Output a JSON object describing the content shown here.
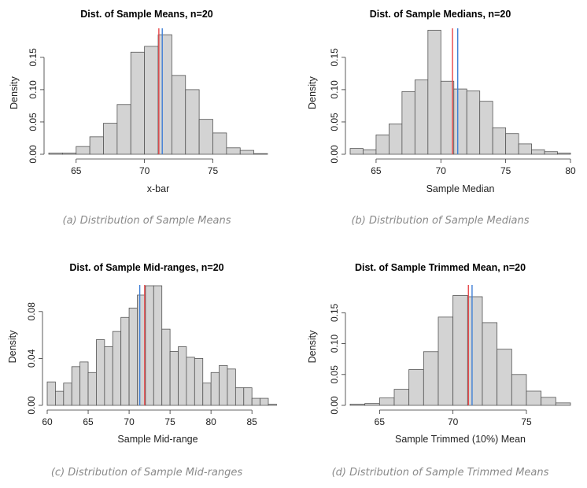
{
  "chart_data": [
    {
      "type": "histogram",
      "title": "Dist. of Sample Means, n=20",
      "xlabel": "x-bar",
      "ylabel": "Density",
      "caption": "(a) Distribution of Sample Means",
      "xlim": [
        63,
        79
      ],
      "ylim": [
        0,
        0.19
      ],
      "xticks": [
        65,
        70,
        75
      ],
      "yticks": [
        0.0,
        0.05,
        0.1,
        0.15
      ],
      "ytick_labels": [
        "0.00",
        "0.05",
        "0.10",
        "0.15"
      ],
      "bin_start": 63,
      "bin_width": 1,
      "values": [
        0.002,
        0.002,
        0.012,
        0.027,
        0.048,
        0.077,
        0.158,
        0.167,
        0.185,
        0.122,
        0.1,
        0.054,
        0.033,
        0.01,
        0.006,
        0.001
      ],
      "vlines": [
        {
          "color": "#e8474a",
          "x": 71.05
        },
        {
          "color": "#3f7fd6",
          "x": 71.3
        }
      ],
      "bar_fill": "#d3d3d3",
      "bar_stroke": "#555555"
    },
    {
      "type": "histogram",
      "title": "Dist. of Sample Medians, n=20",
      "xlabel": "Sample Median",
      "ylabel": "Density",
      "caption": "(b) Distribution of Sample Medians",
      "xlim": [
        63,
        80
      ],
      "ylim": [
        0,
        0.19
      ],
      "xticks": [
        65,
        70,
        75,
        80
      ],
      "yticks": [
        0.0,
        0.05,
        0.1,
        0.15
      ],
      "ytick_labels": [
        "0.00",
        "0.05",
        "0.10",
        "0.15"
      ],
      "bin_start": 63,
      "bin_width": 1,
      "values": [
        0.009,
        0.007,
        0.03,
        0.047,
        0.097,
        0.115,
        0.192,
        0.113,
        0.101,
        0.098,
        0.082,
        0.041,
        0.032,
        0.016,
        0.007,
        0.004,
        0.002
      ],
      "vlines": [
        {
          "color": "#e8474a",
          "x": 70.9
        },
        {
          "color": "#3f7fd6",
          "x": 71.3
        }
      ],
      "bar_fill": "#d3d3d3",
      "bar_stroke": "#555555"
    },
    {
      "type": "histogram",
      "title": "Dist. of Sample Mid-ranges, n=20",
      "xlabel": "Sample Mid-range",
      "ylabel": "Density",
      "caption": "(c) Distribution of Sample Mid-ranges",
      "xlim": [
        60,
        87
      ],
      "ylim": [
        0,
        0.1
      ],
      "xticks": [
        60,
        65,
        70,
        75,
        80,
        85
      ],
      "yticks": [
        0.0,
        0.04,
        0.08
      ],
      "ytick_labels": [
        "0.00",
        "0.04",
        "0.08"
      ],
      "bin_start": 60,
      "bin_width": 1,
      "values": [
        0.02,
        0.012,
        0.019,
        0.033,
        0.037,
        0.028,
        0.056,
        0.05,
        0.063,
        0.075,
        0.083,
        0.094,
        0.102,
        0.102,
        0.065,
        0.046,
        0.05,
        0.041,
        0.04,
        0.019,
        0.028,
        0.034,
        0.031,
        0.015,
        0.015,
        0.006,
        0.006,
        0.001
      ],
      "vlines": [
        {
          "color": "#3f7fd6",
          "x": 71.3
        },
        {
          "color": "#e8474a",
          "x": 71.9
        }
      ],
      "bar_fill": "#d3d3d3",
      "bar_stroke": "#555555"
    },
    {
      "type": "histogram",
      "title": "Dist. of Sample Trimmed Mean, n=20",
      "xlabel": "Sample Trimmed (10%) Mean",
      "ylabel": "Density",
      "caption": "(d) Distribution of Sample Trimmed Means",
      "xlim": [
        63,
        78
      ],
      "ylim": [
        0,
        0.19
      ],
      "xticks": [
        65,
        70,
        75
      ],
      "yticks": [
        0.0,
        0.05,
        0.1,
        0.15
      ],
      "ytick_labels": [
        "0.00",
        "0.05",
        "0.10",
        "0.15"
      ],
      "bin_start": 63,
      "bin_width": 1,
      "values": [
        0.002,
        0.003,
        0.012,
        0.026,
        0.058,
        0.087,
        0.143,
        0.178,
        0.176,
        0.134,
        0.091,
        0.05,
        0.023,
        0.013,
        0.004
      ],
      "vlines": [
        {
          "color": "#e8474a",
          "x": 71.05
        },
        {
          "color": "#3f7fd6",
          "x": 71.3
        }
      ],
      "bar_fill": "#d3d3d3",
      "bar_stroke": "#555555"
    }
  ]
}
